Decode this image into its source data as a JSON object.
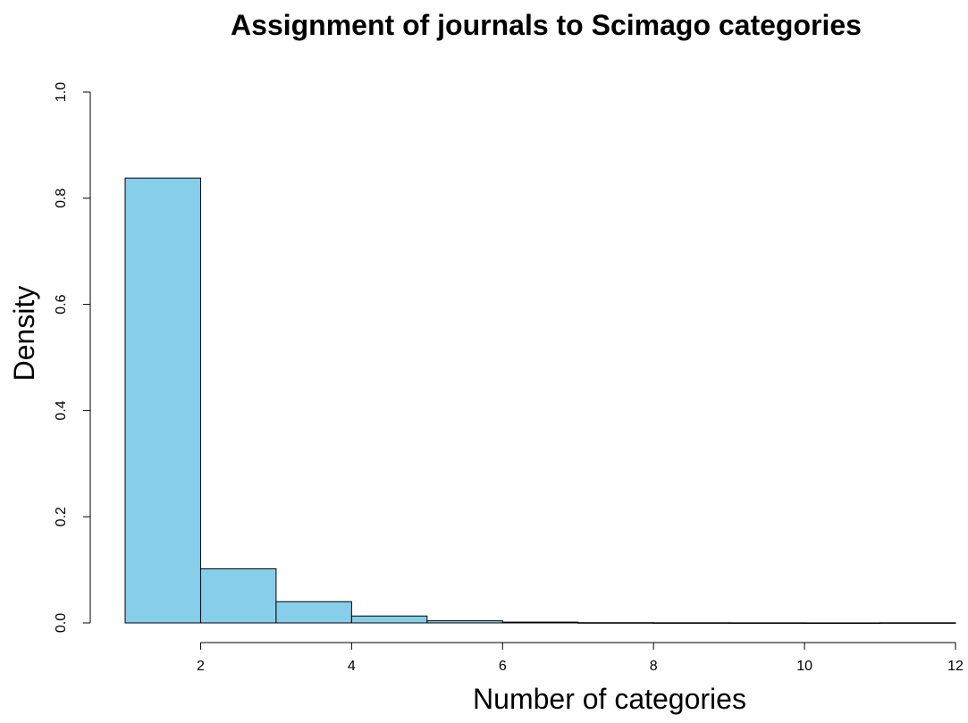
{
  "chart_data": {
    "type": "bar",
    "title": "Assignment of journals to Scimago categories",
    "xlabel": "Number of categories",
    "ylabel": "Density",
    "bin_edges": [
      1,
      2,
      3,
      4,
      5,
      6,
      7,
      8,
      9,
      10,
      11,
      12
    ],
    "values": [
      0.838,
      0.102,
      0.04,
      0.013,
      0.004,
      0.0015,
      0.0005,
      0.0003,
      0.0002,
      0.0001,
      0.0003
    ],
    "xlim": [
      1,
      12
    ],
    "ylim": [
      0,
      1
    ],
    "x_ticks": [
      2,
      4,
      6,
      8,
      10,
      12
    ],
    "x_tick_labels": [
      "2",
      "4",
      "6",
      "8",
      "10",
      "12"
    ],
    "y_ticks": [
      0,
      0.2,
      0.4,
      0.6,
      0.8,
      1
    ],
    "y_tick_labels": [
      "0.0",
      "0.2",
      "0.4",
      "0.6",
      "0.8",
      "1.0"
    ],
    "bar_color": "#87CEEB",
    "bar_border_color": "#000000",
    "grid": false,
    "legend": "none"
  }
}
